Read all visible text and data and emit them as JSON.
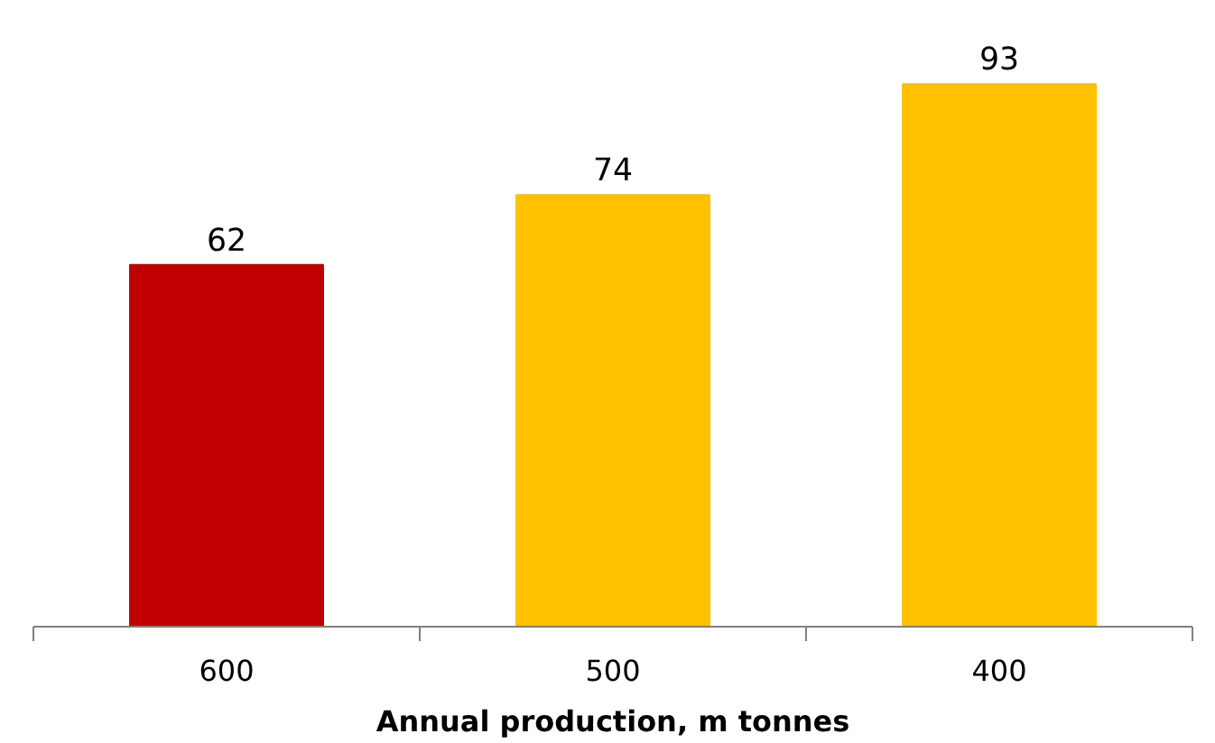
{
  "chart_data": {
    "type": "bar",
    "xlabel": "Annual production, m tonnes",
    "categories": [
      "600",
      "500",
      "400"
    ],
    "values": [
      62,
      74,
      93
    ],
    "colors": [
      "#c00000",
      "#ffc000",
      "#ffc000"
    ],
    "data_labels": true,
    "grid": false
  }
}
